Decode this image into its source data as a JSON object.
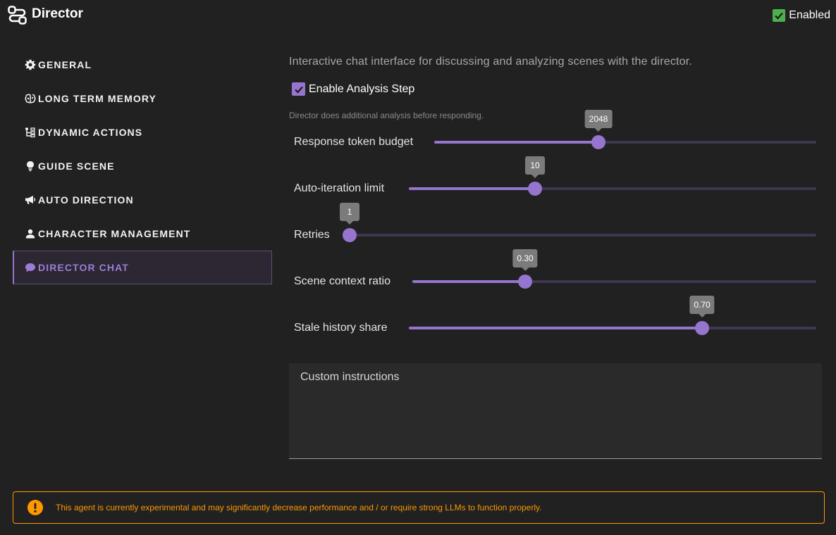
{
  "header": {
    "title": "Director",
    "enabled_label": "Enabled",
    "enabled_checked": true,
    "app_icon": "route-icon"
  },
  "sidebar": {
    "items": [
      {
        "label": "GENERAL",
        "icon": "gear-icon"
      },
      {
        "label": "LONG TERM MEMORY",
        "icon": "brain-icon"
      },
      {
        "label": "DYNAMIC ACTIONS",
        "icon": "tree-icon"
      },
      {
        "label": "GUIDE SCENE",
        "icon": "lightbulb-icon"
      },
      {
        "label": "AUTO DIRECTION",
        "icon": "megaphone-icon"
      },
      {
        "label": "CHARACTER MANAGEMENT",
        "icon": "person-icon"
      },
      {
        "label": "DIRECTOR CHAT",
        "icon": "chat-icon",
        "active": true
      }
    ]
  },
  "main": {
    "intro": "Interactive chat interface for discussing and analyzing scenes with the director.",
    "analysis_step": {
      "label": "Enable Analysis Step",
      "checked": true
    },
    "hint": "Director does additional analysis before responding.",
    "sliders": [
      {
        "label": "Response token budget",
        "value": "2048",
        "fraction": 0.43
      },
      {
        "label": "Auto-iteration limit",
        "value": "10",
        "fraction": 0.31
      },
      {
        "label": "Retries",
        "value": "1",
        "fraction": 0.0
      },
      {
        "label": "Scene context ratio",
        "value": "0.30",
        "fraction": 0.28
      },
      {
        "label": "Stale history share",
        "value": "0.70",
        "fraction": 0.72
      }
    ],
    "custom_instructions": {
      "label": "Custom instructions",
      "value": ""
    }
  },
  "alert": {
    "text": "This agent is currently experimental and may significantly decrease performance and / or require strong LLMs to function properly.",
    "icon": "exclamation-icon"
  },
  "colors": {
    "background": "#212121",
    "accent": "#9575cd",
    "enabled_green": "#4caf50",
    "warning": "#ff9800"
  }
}
